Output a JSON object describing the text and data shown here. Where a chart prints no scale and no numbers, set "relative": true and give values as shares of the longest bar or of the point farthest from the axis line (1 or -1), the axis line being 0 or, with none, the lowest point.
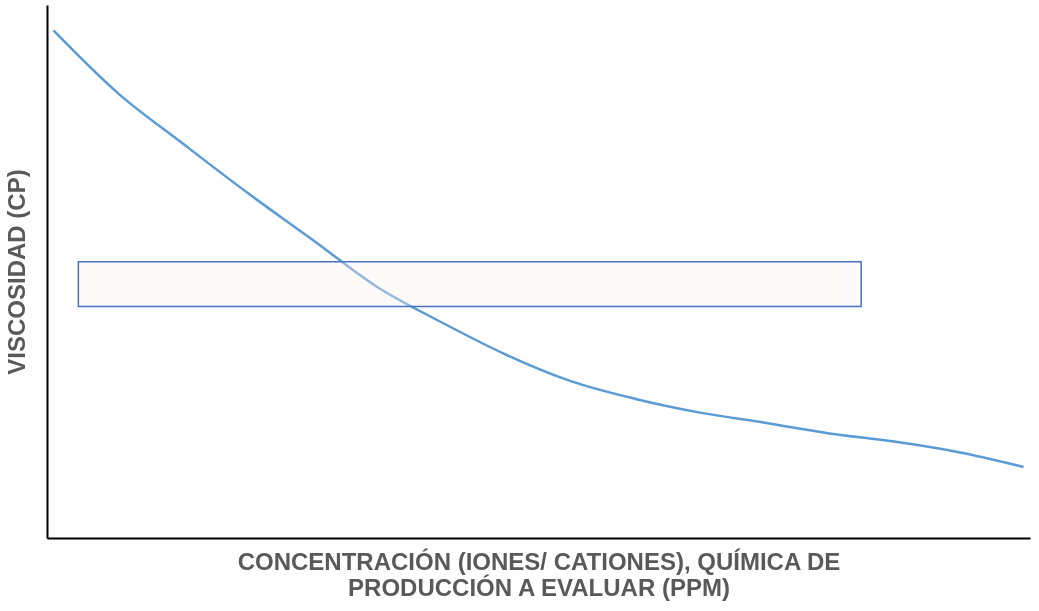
{
  "chart_data": {
    "type": "line",
    "relative": true,
    "xlabel": "CONCENTRACIÓN (IONES/ CATIONES), QUÍMICA DE PRODUCCIÓN A EVALUAR  (PPM)",
    "ylabel": "VISCOSIDAD (CP)",
    "categories": [
      null,
      null,
      null,
      null,
      null,
      null,
      null,
      null,
      null,
      null,
      null,
      null,
      null,
      null,
      null,
      null
    ],
    "series": [
      {
        "color": "#5b9bd5",
        "values": [
          1.0,
          0.876,
          0.777,
          0.68,
          0.588,
          0.495,
          0.425,
          0.361,
          0.309,
          0.274,
          0.247,
          0.227,
          0.206,
          0.19,
          0.169,
          0.14
        ]
      }
    ],
    "bands": [
      {
        "axis": "y",
        "from": 0.456,
        "to": 0.544,
        "color": "#fdf0ee"
      }
    ],
    "grid": false,
    "marker": "none",
    "line_style": "solid"
  }
}
